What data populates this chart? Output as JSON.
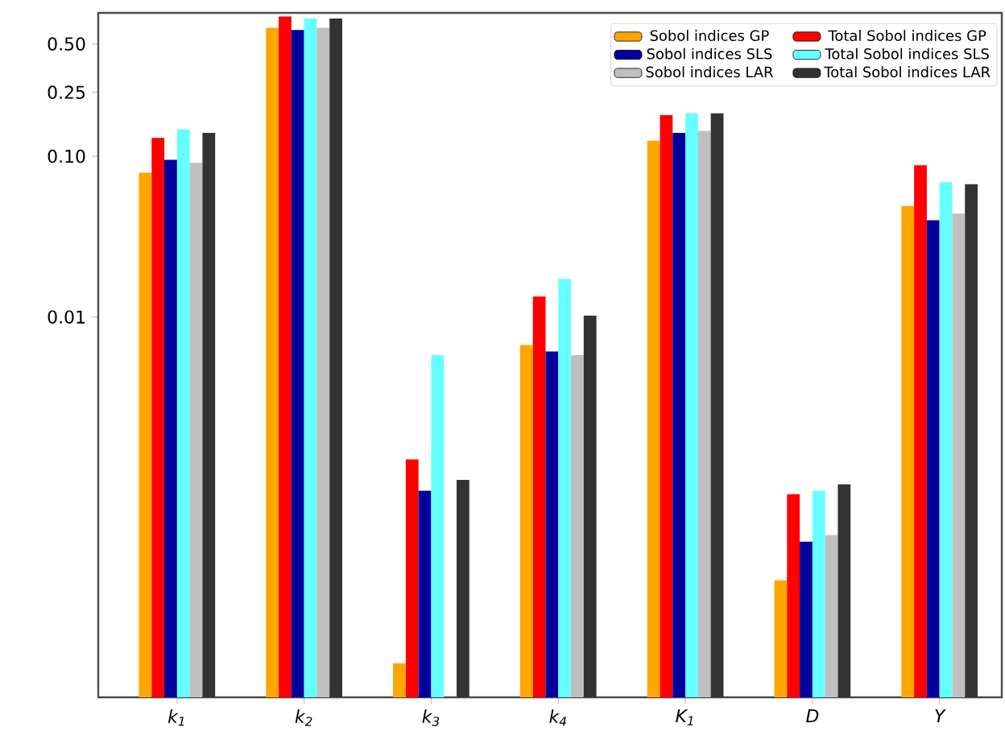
{
  "chart_data": {
    "type": "bar",
    "categories": [
      "k$_{1}$",
      "k$_{2}$",
      "k$_{3}$",
      "k$_{4}$",
      "K$_{1}$",
      "D",
      "Y"
    ],
    "series": [
      {
        "name": "Sobol indices GP",
        "color": "#ffa500",
        "values": [
          0.079,
          0.63,
          7e-05,
          0.0067,
          0.125,
          0.00023,
          0.049
        ]
      },
      {
        "name": "Total Sobol indices GP",
        "color": "#ff0000",
        "values": [
          0.13,
          0.74,
          0.0013,
          0.0134,
          0.18,
          0.00079,
          0.088
        ]
      },
      {
        "name": "Sobol indices SLS",
        "color": "#00009c",
        "values": [
          0.095,
          0.61,
          0.00083,
          0.0061,
          0.14,
          0.0004,
          0.04
        ]
      },
      {
        "name": "Total Sobol indices SLS",
        "color": "#66ffff",
        "values": [
          0.147,
          0.72,
          0.0058,
          0.0173,
          0.185,
          0.00083,
          0.069
        ]
      },
      {
        "name": "Sobol indices LAR",
        "color": "#bfbfbf",
        "values": [
          0.091,
          0.63,
          null,
          0.0058,
          0.144,
          0.00044,
          0.044
        ]
      },
      {
        "name": "Total Sobol indices LAR",
        "color": "#333333",
        "values": [
          0.14,
          0.72,
          0.00097,
          0.0102,
          0.185,
          0.00091,
          0.067
        ]
      }
    ],
    "log": "y",
    "ylim": [
      4.3e-05,
      0.78
    ],
    "yticks": [
      0.01,
      {
        "value": 0.1,
        "label": "0.10"
      },
      0.25,
      {
        "value": 0.5,
        "label": "0.50"
      }
    ],
    "legend": "top right"
  }
}
